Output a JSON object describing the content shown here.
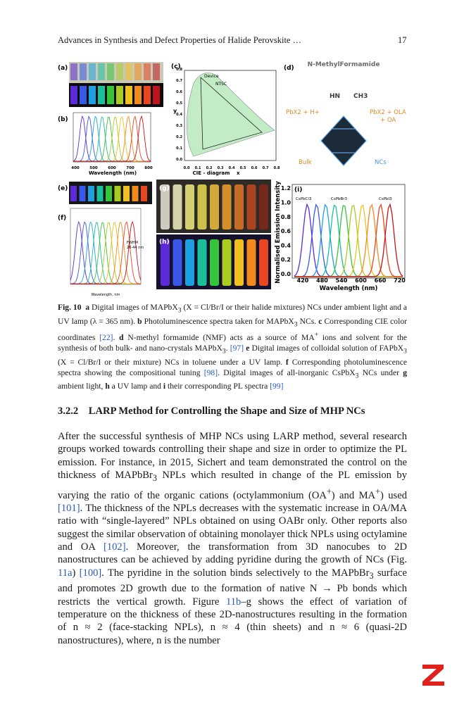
{
  "header": {
    "running_title": "Advances in Synthesis and Defect Properties of Halide Perovskite …",
    "page_number": "17"
  },
  "figure": {
    "panel_labels": [
      "(a)",
      "(b)",
      "(c)",
      "(d)",
      "(e)",
      "(f)",
      "(g)",
      "(h)",
      "(i)"
    ],
    "b": {
      "xlabel": "Wavelength (nm)",
      "xticks": [
        "400",
        "500",
        "600",
        "700",
        "800"
      ]
    },
    "c": {
      "xlabel": "CIE - diagram",
      "xname": "x",
      "yname": "y",
      "xticks": [
        "0.0",
        "0.1",
        "0.2",
        "0.3",
        "0.4",
        "0.5",
        "0.6",
        "0.7",
        "0.8"
      ],
      "yticks": [
        "0.0",
        "0.1",
        "0.2",
        "0.3",
        "0.4",
        "0.5",
        "0.6",
        "0.7",
        "0.8"
      ],
      "labels": [
        "Device",
        "NTSC"
      ]
    },
    "d": {
      "title": "N-MethylFormamide",
      "hn": "HN",
      "ch3": "CH3",
      "left": "PbX2 + H+",
      "right1": "PbX2 + OLA",
      "right2": "+ OA",
      "bulk": "Bulk",
      "ncs": "NCs"
    },
    "f": {
      "fwhm1": "FWHM",
      "fwhm2": "20-44 nm",
      "xlabel": "Wavelength, nm"
    },
    "i": {
      "ylabel": "Normalised Emission Intensity",
      "xlabel": "Wavelength (nm)",
      "xticks": [
        "420",
        "480",
        "540",
        "600",
        "660",
        "720"
      ],
      "yticks": [
        "0.0",
        "0.2",
        "0.4",
        "0.6",
        "0.8",
        "1.0",
        "1.2"
      ],
      "compounds": [
        "CsPbCl3",
        "CsPbBr3",
        "CsPbI3"
      ]
    }
  },
  "caption": [
    "Fig. 10",
    "a",
    "Digital images of MAPbX",
    "3",
    "(X = Cl/Br/I or their halide mixtures) NCs under ambient light and a UV lamp (λ = 365 nm).",
    "b",
    "Photoluminescence spectra taken for MAPbX",
    "3",
    "NCs.",
    "c",
    "Corresponding CIE color coordinates",
    "[22]",
    ".",
    "d",
    "N-methyl formamide (NMF) acts as a source of MA",
    "+",
    "ions and solvent for the synthesis of both bulk- and nano-crystals MAPbX",
    "3",
    ".",
    "[97]",
    "e",
    "Digital images of colloidal solution of FAPbX",
    "3",
    "(X = Cl/Br/I or their mixture) NCs in toluene under a UV lamp.",
    "f",
    "Corresponding photoluminescence spectra showing the compositional tuning",
    "[98]",
    ".",
    "Digital images of all-inorganic CsPbX",
    "3",
    "NCs under",
    "g",
    "ambient light,",
    "h",
    "a UV lamp and",
    "i",
    "their corresponding PL spectra",
    "[99]"
  ],
  "section": {
    "number": "3.2.2",
    "title": "LARP Method for Controlling the Shape and Size of MHP NCs"
  },
  "paragraph": [
    "After the successful synthesis of MHP NCs using LARP method, several research groups worked towards controlling their shape and size in order to optimize the PL emission. For instance, in 2015, Sichert and team demonstrated the control on the thickness of MAPbBr",
    "3",
    "NPLs which resulted in change of the PL emission by varying the ratio of the organic cations (octylammonium (OA",
    "+",
    ") and MA",
    "+",
    ") used",
    "[101]",
    ". The thickness of the NPLs decreases with the systematic increase in OA/MA ratio with “single-layered” NPLs obtained on using OABr only. Other reports also suggest the similar observation of obtaining monolayer thick NPLs using octylamine and OA",
    "[102]",
    ". Moreover, the transformation from 3D nanocubes to 2D nanostructures can be achieved by adding pyridine during the growth of NCs (Fig.",
    "11a",
    ")",
    "[100]",
    ". The pyridine in the solution binds selectively to the MAPbBr",
    "3",
    "surface and promotes 2D growth due to the formation of native N → Pb bonds which restricts the vertical growth. Figure",
    "11b",
    "–g shows the effect of variation of temperature on the thickness of these 2D-nanostructures resulting in the formation of n ≈ 2 (face-stacking NPLs), n ≈ 4 (thin sheets) and n ≈ 6 (quasi-2D nanostructures), where, n is the number"
  ]
}
